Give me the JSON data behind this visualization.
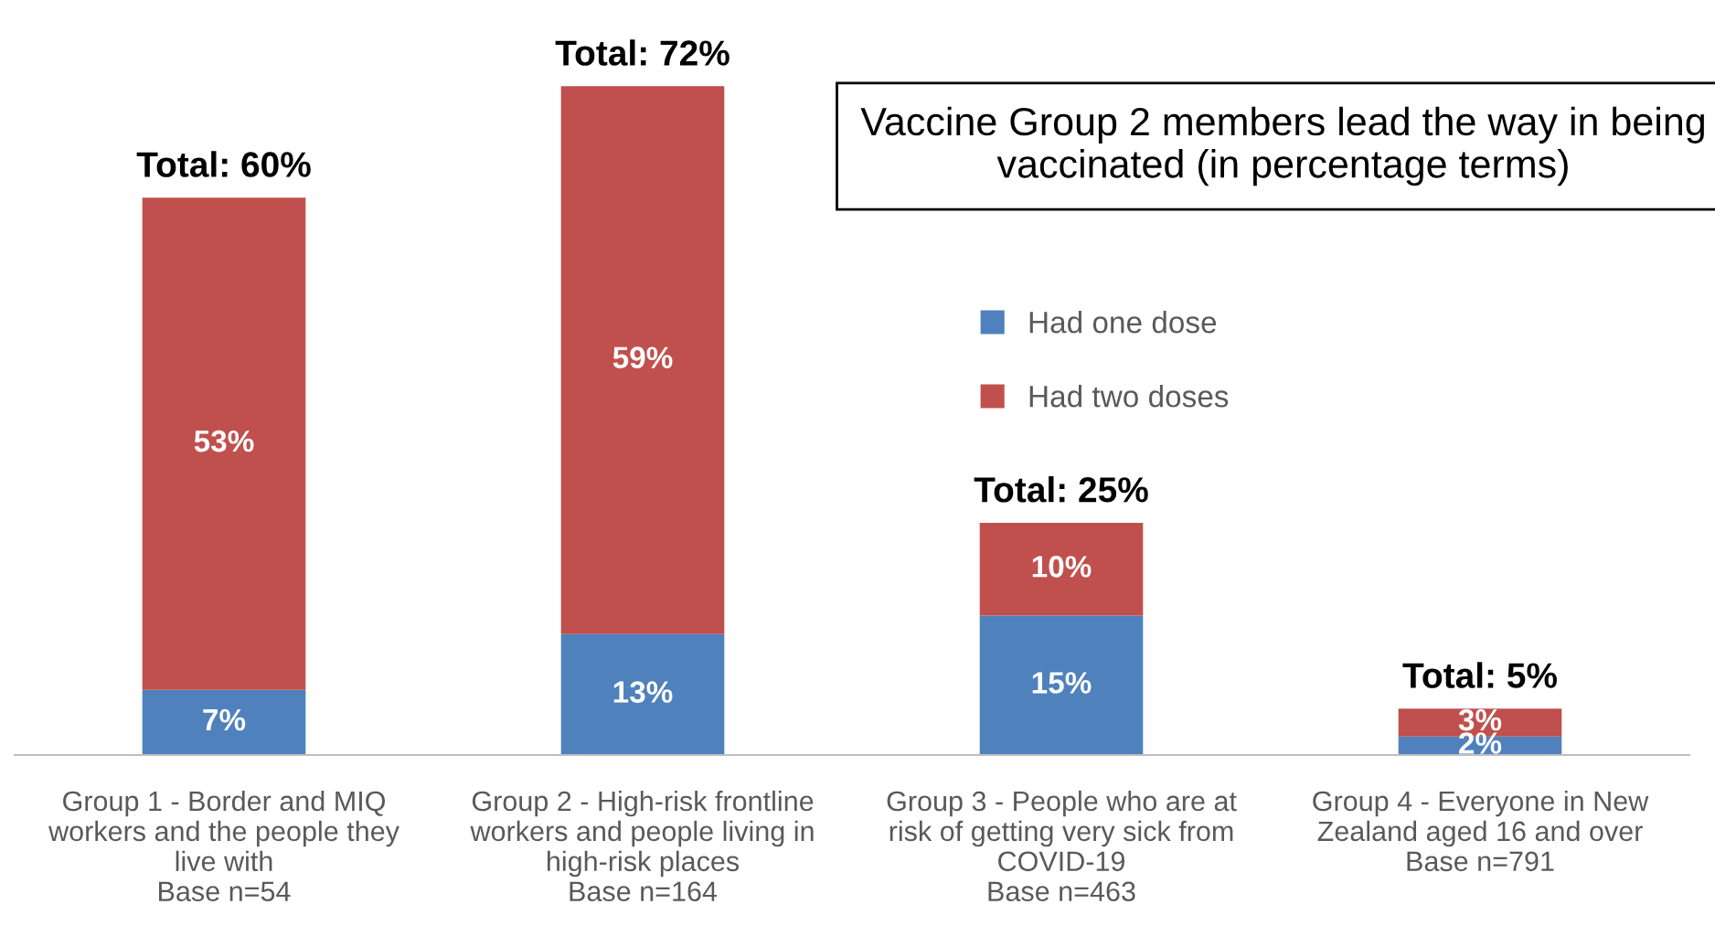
{
  "chart_data": {
    "type": "bar",
    "stacked": true,
    "title": "Vaccine Group 2 members lead the way in being vaccinated (in percentage terms)",
    "categories": [
      "Group 1 - Border and MIQ\nworkers and the people they\nlive with\nBase n=54",
      "Group 2 - High-risk frontline\nworkers and people living in\nhigh-risk places\nBase n=164",
      "Group 3 - People who are at\nrisk of getting very sick from\nCOVID-19\nBase n=463",
      "Group 4 - Everyone in New\nZealand aged 16 and over\nBase n=791"
    ],
    "series": [
      {
        "name": "Had one dose",
        "color": "#4f81bd",
        "values": [
          7,
          13,
          15,
          2
        ],
        "value_labels": [
          "7%",
          "13%",
          "15%",
          "2%"
        ]
      },
      {
        "name": "Had two doses",
        "color": "#c0504d",
        "values": [
          53,
          59,
          10,
          3
        ],
        "value_labels": [
          "53%",
          "59%",
          "10%",
          "3%"
        ]
      }
    ],
    "totals": [
      "Total: 60%",
      "Total: 72%",
      "Total: 25%",
      "Total: 5%"
    ],
    "legend": "top right",
    "grid": false
  }
}
